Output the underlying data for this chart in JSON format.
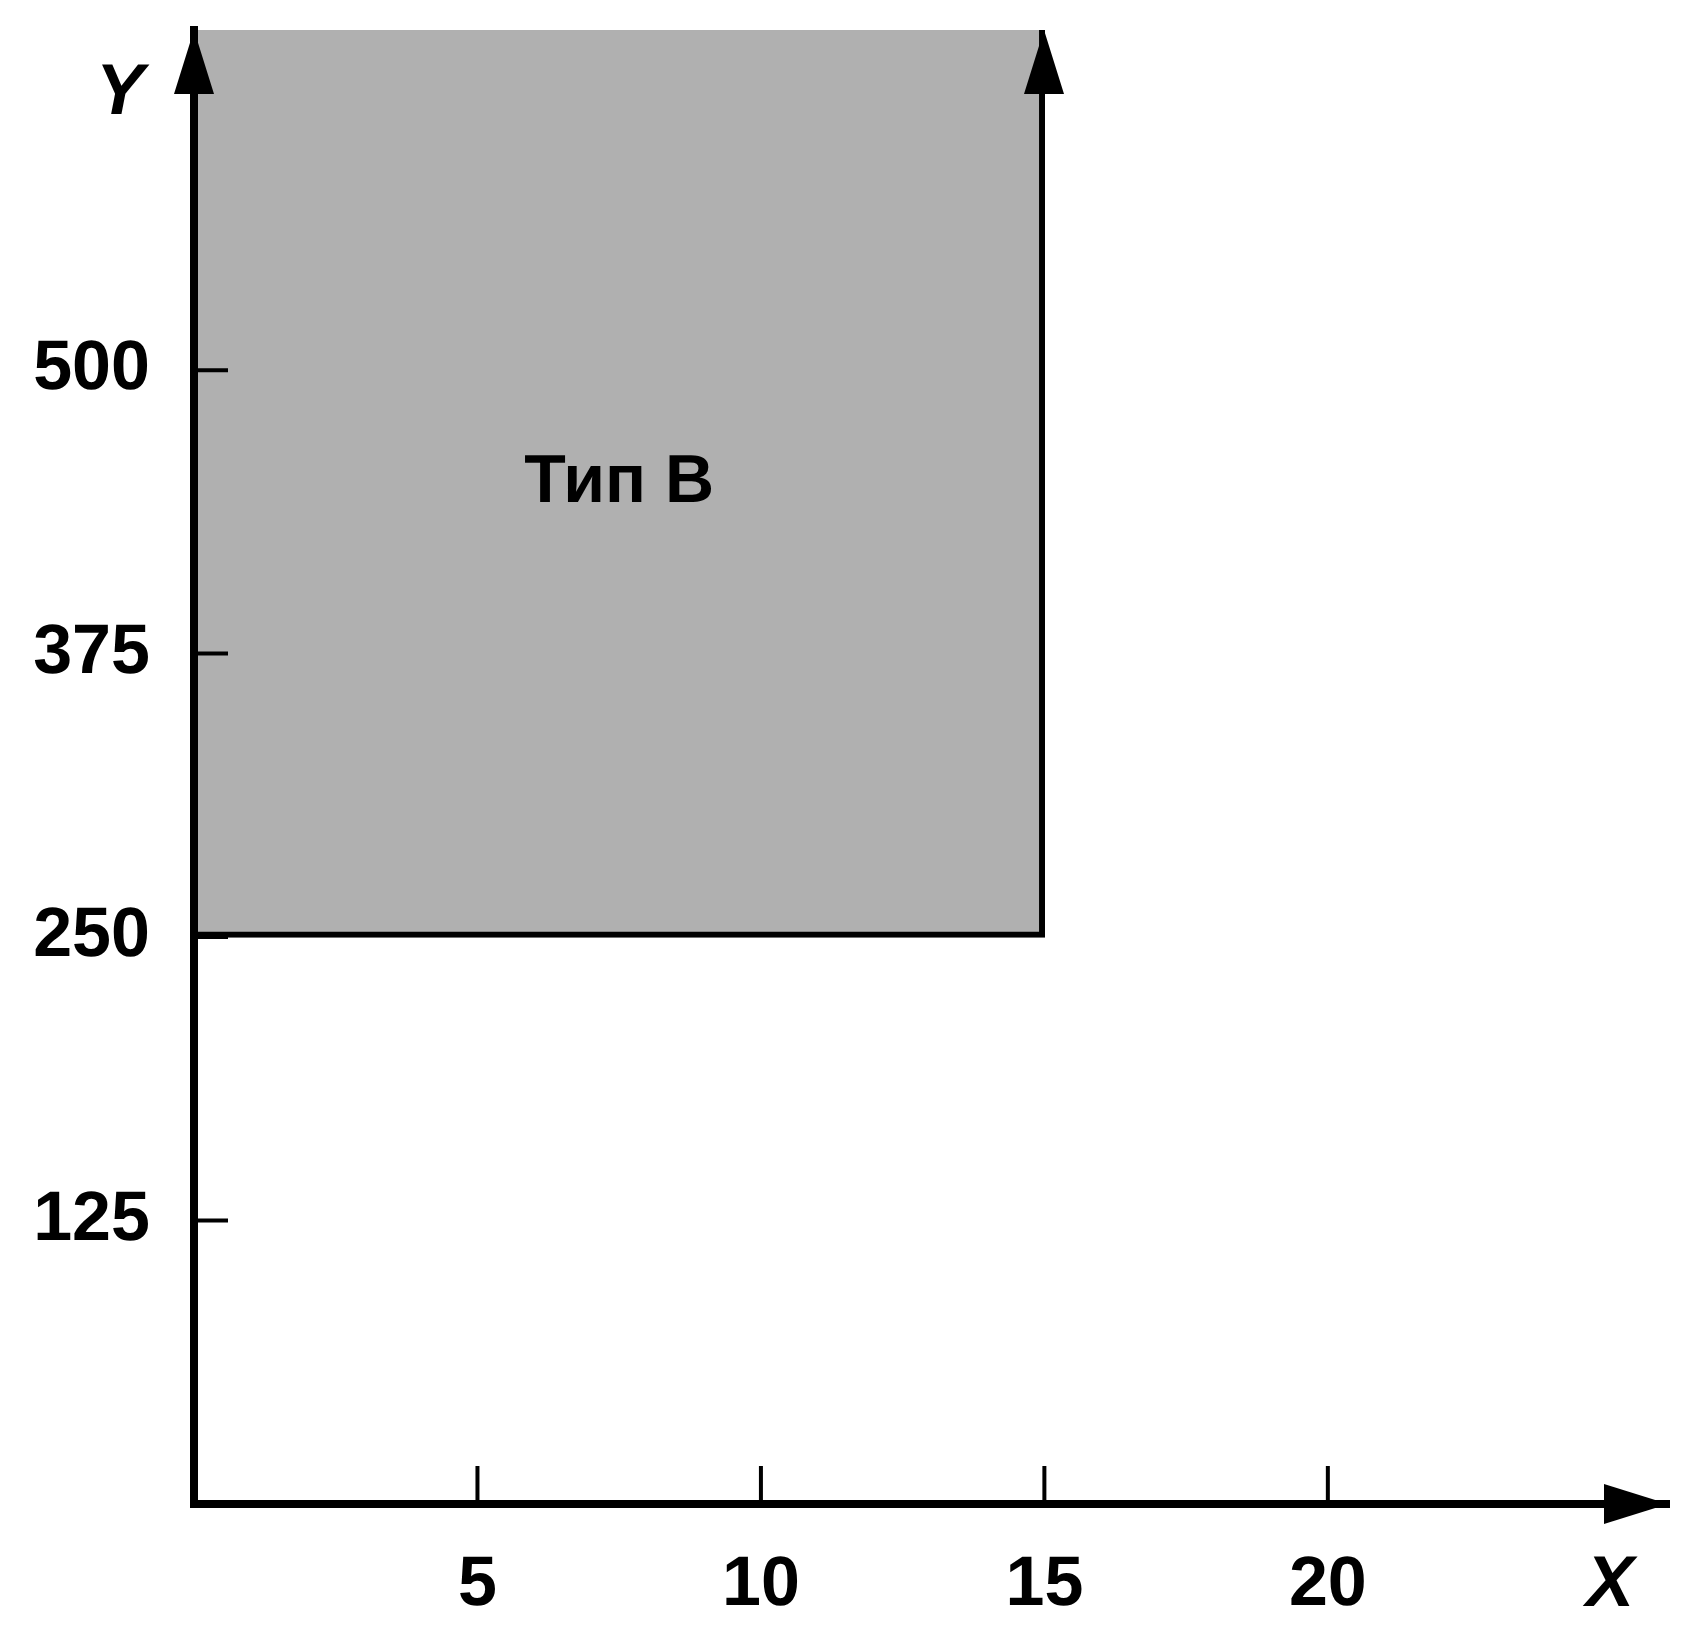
{
  "chart_data": {
    "type": "histogram",
    "xlabel": "X",
    "ylabel": "Y",
    "xlim": [
      0,
      26
    ],
    "ylim": [
      0,
      650
    ],
    "xticks": [
      5,
      10,
      15,
      20
    ],
    "yticks": [
      125,
      250,
      375,
      500
    ],
    "bins": [
      0,
      15
    ],
    "values": [
      400
    ],
    "base": [
      250
    ],
    "color": "#b0b0b0",
    "annotations": [
      "Тип В"
    ]
  }
}
